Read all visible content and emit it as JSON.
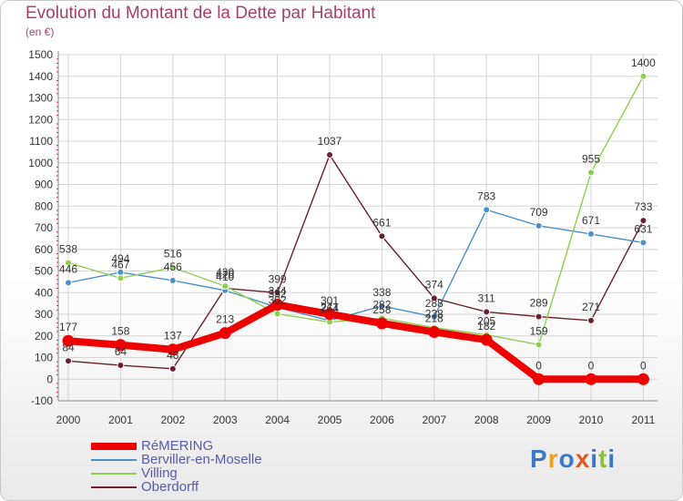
{
  "title": "Evolution du Montant de la Dette par Habitant",
  "subtitle": "(en €)",
  "logo": {
    "text": "Proxiti",
    "colors": [
      "#3a78c8",
      "#e8a020",
      "#3a78c8",
      "#e05a20",
      "#3a78c8",
      "#8ac040",
      "#3a78c8"
    ]
  },
  "chart_data": {
    "type": "line",
    "categories": [
      "2000",
      "2001",
      "2002",
      "2003",
      "2004",
      "2005",
      "2006",
      "2007",
      "2008",
      "2009",
      "2010",
      "2011"
    ],
    "y_ticks": [
      "1500",
      "1400",
      "1300",
      "1200",
      "1100",
      "1000",
      "900",
      "800",
      "700",
      "600",
      "500",
      "400",
      "300",
      "200",
      "100",
      "0",
      "-100"
    ],
    "ylim": [
      -100,
      1500
    ],
    "grid": true,
    "series": [
      {
        "name": "Oberdorff",
        "color": "#6b1f2a",
        "values": [
          84,
          64,
          48,
          420,
          399,
          1037,
          661,
          374,
          311,
          289,
          271,
          733
        ],
        "labels": [
          "84",
          "64",
          "48",
          "420",
          "399",
          "1037",
          "661",
          "374",
          "311",
          "289",
          "271",
          "733"
        ]
      },
      {
        "name": "Berviller-en-Moselle",
        "color": "#4a90c8",
        "values": [
          446,
          494,
          456,
          410,
          332,
          271,
          338,
          288,
          783,
          709,
          671,
          631
        ],
        "labels": [
          "446",
          "494",
          "456",
          "410",
          "332",
          "271",
          "338",
          "288",
          "783",
          "709",
          "671",
          "631"
        ]
      },
      {
        "name": "Villing",
        "color": "#8cd050",
        "values": [
          538,
          467,
          516,
          430,
          302,
          264,
          282,
          238,
          205,
          159,
          955,
          1400
        ],
        "labels": [
          "538",
          "467",
          "516",
          "430",
          "302",
          "264",
          "282",
          "238",
          "205",
          "159",
          "955",
          "1400"
        ]
      },
      {
        "name": "RéMERING",
        "color": "#ee0000",
        "values": [
          177,
          158,
          137,
          213,
          344,
          301,
          258,
          218,
          182,
          0,
          0,
          0
        ],
        "labels": [
          "177",
          "158",
          "137",
          "213",
          "344",
          "301",
          "258",
          "218",
          "182",
          "0",
          "0",
          "0"
        ]
      }
    ],
    "legend": [
      "RéMERING",
      "Berviller-en-Moselle",
      "Villing",
      "Oberdorff"
    ],
    "legend_position": "bottom-left"
  }
}
